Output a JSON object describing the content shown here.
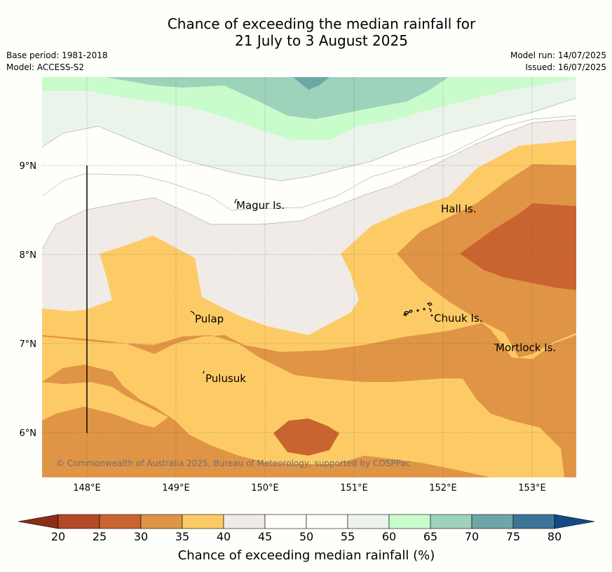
{
  "header": {
    "title_line1": "Chance of exceeding the median rainfall for",
    "title_line2": "21 July to 3 August 2025",
    "base_period": "Base period: 1981-2018",
    "model": "Model: ACCESS-S2",
    "model_run": "Model run: 14/07/2025",
    "issued": "Issued: 16/07/2025"
  },
  "map": {
    "lon_labels": [
      "148°E",
      "149°E",
      "150°E",
      "151°E",
      "152°E",
      "153°E"
    ],
    "lat_labels": [
      "9°N",
      "8°N",
      "7°N",
      "6°N"
    ],
    "places": {
      "magur": "Magur Is.",
      "hall": "Hall Is.",
      "pulap": "Pulap",
      "chuuk": "Chuuk Is.",
      "mortlock": "Mortlock Is.",
      "pulusuk": "Pulusuk"
    },
    "copyright": "© Commonwealth of Australia 2025, Bureau of Meteorology, supported by COSPPac"
  },
  "colorbar": {
    "title": "Chance of exceeding median rainfall (%)",
    "ticks": [
      "20",
      "25",
      "30",
      "35",
      "40",
      "45",
      "50",
      "55",
      "60",
      "65",
      "70",
      "75",
      "80"
    ],
    "colors": {
      "below20": "#8b2e18",
      "b20_25": "#b34a25",
      "b25_30": "#c96431",
      "b30_35": "#e09445",
      "b35_40": "#fdcb65",
      "b40_45": "#f0ebe6",
      "b45_50": "#fefefb",
      "b50_55": "#fefefb",
      "b55_60": "#ebf4ea",
      "b60_65": "#c8fccb",
      "b65_70": "#9dd2bb",
      "b70_75": "#6ea6a8",
      "b75_80": "#3e7597",
      "above80": "#124a86"
    }
  }
}
